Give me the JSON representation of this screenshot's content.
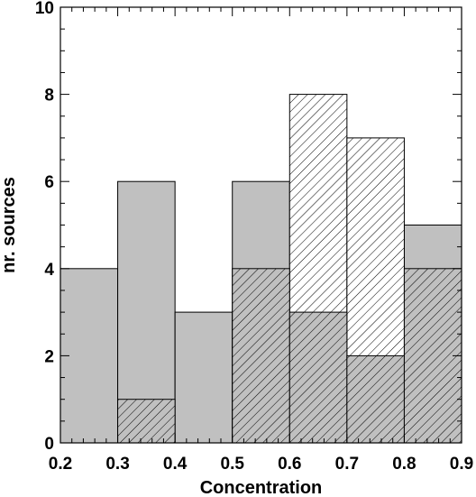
{
  "chart_data": {
    "type": "bar",
    "subtype": "histogram",
    "xlabel": "Concentration",
    "ylabel": "nr. sources",
    "xlim": [
      0.2,
      0.9
    ],
    "ylim": [
      0,
      10
    ],
    "x_ticks": [
      "0.2",
      "0.3",
      "0.4",
      "0.5",
      "0.6",
      "0.7",
      "0.8",
      "0.9"
    ],
    "y_ticks": [
      "0",
      "2",
      "4",
      "6",
      "8",
      "10"
    ],
    "bin_edges": [
      0.2,
      0.3,
      0.4,
      0.5,
      0.6,
      0.7,
      0.8,
      0.9
    ],
    "grid": false,
    "series": [
      {
        "fill": "#c0c0c0",
        "pattern": "solid",
        "values": [
          4,
          6,
          3,
          6,
          3,
          2,
          5
        ]
      },
      {
        "fill": "#ffffff",
        "pattern": "hatched",
        "values": [
          0,
          0,
          0,
          0,
          8,
          7,
          0
        ]
      },
      {
        "fill": "#c0c0c0",
        "pattern": "hatched",
        "values": [
          0,
          1,
          0,
          4,
          3,
          2,
          4
        ]
      }
    ]
  }
}
